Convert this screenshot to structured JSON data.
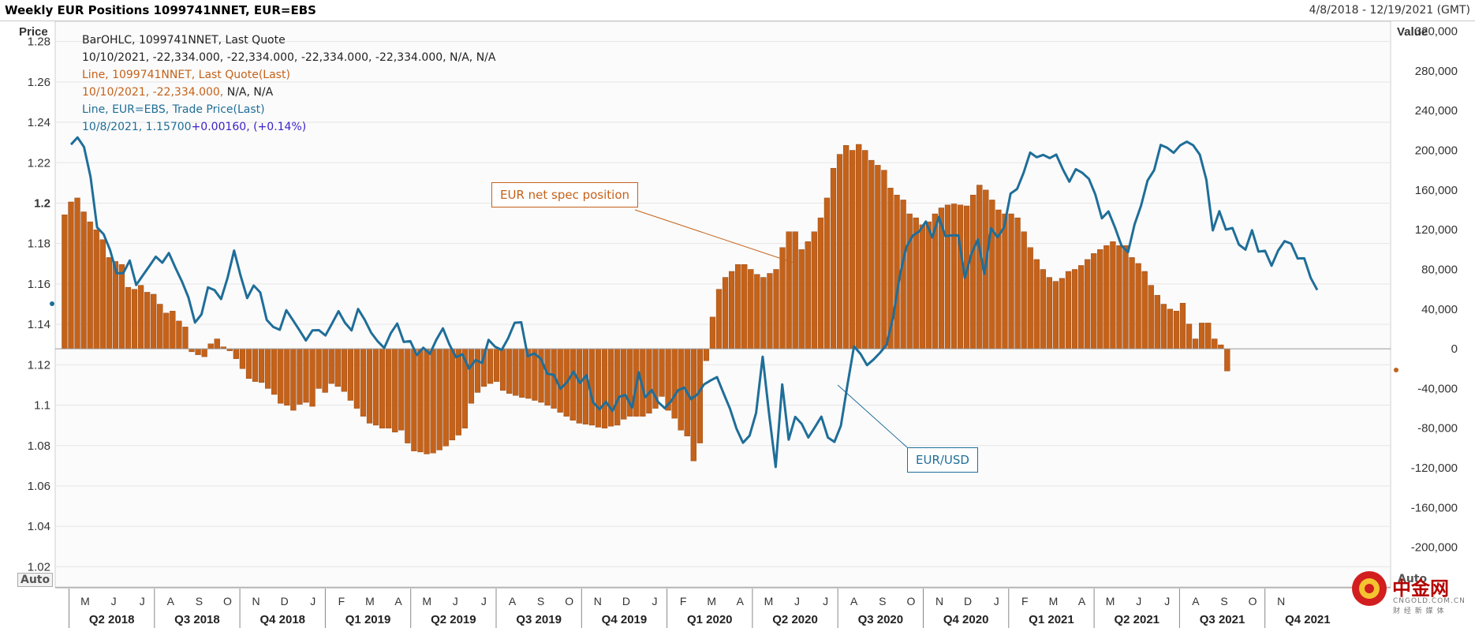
{
  "header": {
    "title": "Weekly EUR Positions 1099741NNET, EUR=EBS",
    "date_range": "4/8/2018 - 12/19/2021 (GMT)"
  },
  "legend": {
    "line1": "BarOHLC, 1099741NNET, Last Quote",
    "line2": "10/10/2021, -22,334.000, -22,334.000, -22,334.000, -22,334.000, N/A, N/A",
    "line3": "Line, 1099741NNET, Last Quote(Last)",
    "line4a": "10/10/2021, -22,334.000,",
    "line4b": " N/A, N/A",
    "line5": "Line, EUR=EBS, Trade Price(Last)",
    "line6a": "10/8/2021, 1.15700",
    "line6b": "+0.00160, (+0.14%)"
  },
  "callouts": {
    "position": "EUR net spec position",
    "eurusd": "EUR/USD"
  },
  "controls": {
    "auto_left": "Auto",
    "auto_right": "Auto"
  },
  "watermark": {
    "text": "中金网",
    "sub": "CNGOLD.COM.CN",
    "sub2": "财 经 新 媒 体"
  },
  "colors": {
    "bars": "#c4621a",
    "bars_edge": "#8a3e0c",
    "line": "#1f6e99",
    "legend_orange": "#c4621a",
    "legend_blue": "#1f6e99",
    "legend_purple": "#3b22c8",
    "grid": "#e6e6e6"
  },
  "chart_data": {
    "type": "bar+line",
    "title": "Weekly EUR Positions 1099741NNET, EUR=EBS",
    "left_axis": {
      "label": "Price",
      "ylim": [
        1.01,
        1.29
      ],
      "ticks": [
        1.02,
        1.04,
        1.06,
        1.08,
        1.1,
        1.12,
        1.14,
        1.16,
        1.18,
        1.2,
        1.22,
        1.24,
        1.26,
        1.28
      ],
      "tick_labels": [
        "1.02",
        "1.04",
        "1.06",
        "1.08",
        "1.1",
        "1.12",
        "1.14",
        "1.16",
        "1.18",
        "1.2",
        "1.22",
        "1.24",
        "1.26",
        "1.28"
      ]
    },
    "right_axis": {
      "label": "Value",
      "ylim": [
        -240000,
        330000
      ],
      "ticks": [
        -200000,
        -160000,
        -120000,
        -80000,
        -40000,
        0,
        40000,
        80000,
        120000,
        160000,
        200000,
        240000,
        280000,
        320000
      ],
      "tick_labels": [
        "-200,000",
        "-160,000",
        "-120,000",
        "-80,000",
        "-40,000",
        "0",
        "40,000",
        "80,000",
        "120,000",
        "160,000",
        "200,000",
        "240,000",
        "280,000",
        "320,000"
      ]
    },
    "x_axis": {
      "month_labels": [
        "M",
        "J",
        "J",
        "A",
        "S",
        "O",
        "N",
        "D",
        "J",
        "F",
        "M",
        "A",
        "M",
        "J",
        "J",
        "A",
        "S",
        "O",
        "N",
        "D",
        "J",
        "F",
        "M",
        "A",
        "M",
        "J",
        "J",
        "A",
        "S",
        "O",
        "N",
        "D",
        "J",
        "F",
        "M",
        "A",
        "M",
        "J",
        "J",
        "A",
        "S",
        "O",
        "N"
      ],
      "quarter_labels": [
        "Q2 2018",
        "Q3 2018",
        "Q4 2018",
        "Q1 2019",
        "Q2 2019",
        "Q3 2019",
        "Q4 2019",
        "Q1 2020",
        "Q2 2020",
        "Q3 2020",
        "Q4 2020",
        "Q1 2021",
        "Q2 2021",
        "Q3 2021",
        "Q4 2021"
      ],
      "first_month_index": 1,
      "month_count": 45
    },
    "grid": true,
    "series": [
      {
        "name": "1099741NNET, Last Quote",
        "kind": "bar",
        "axis": "right",
        "values": [
          135000,
          148000,
          152000,
          138000,
          128000,
          120000,
          110000,
          92000,
          88000,
          85000,
          62000,
          60000,
          64000,
          57000,
          55000,
          45000,
          36000,
          38000,
          28000,
          22000,
          -3000,
          -6000,
          -8000,
          5000,
          10000,
          2000,
          -2000,
          -10000,
          -20000,
          -30000,
          -33000,
          -34000,
          -40000,
          -46000,
          -55000,
          -57000,
          -62000,
          -56000,
          -54000,
          -58000,
          -40000,
          -44000,
          -35000,
          -38000,
          -43000,
          -52000,
          -60000,
          -68000,
          -75000,
          -77000,
          -80000,
          -80000,
          -84000,
          -82000,
          -95000,
          -103000,
          -104000,
          -106000,
          -105000,
          -102000,
          -98000,
          -92000,
          -87000,
          -80000,
          -55000,
          -44000,
          -38000,
          -35000,
          -33000,
          -42000,
          -45000,
          -47000,
          -49000,
          -50000,
          -52000,
          -54000,
          -57000,
          -60000,
          -64000,
          -68000,
          -72000,
          -75000,
          -76000,
          -77000,
          -79000,
          -80000,
          -78000,
          -77000,
          -71000,
          -68000,
          -68000,
          -68000,
          -65000,
          -60000,
          -48000,
          -62000,
          -70000,
          -82000,
          -88000,
          -113000,
          -95000,
          -12000,
          32000,
          60000,
          72000,
          78000,
          85000,
          85000,
          80000,
          75000,
          72000,
          76000,
          80000,
          102000,
          118000,
          118000,
          100000,
          108000,
          118000,
          132000,
          152000,
          182000,
          196000,
          205000,
          200000,
          206000,
          200000,
          190000,
          185000,
          180000,
          162000,
          155000,
          150000,
          136000,
          132000,
          125000,
          128000,
          136000,
          142000,
          145000,
          146000,
          145000,
          144000,
          155000,
          165000,
          160000,
          150000,
          140000,
          136000,
          136000,
          132000,
          118000,
          102000,
          90000,
          80000,
          72000,
          68000,
          71000,
          78000,
          80000,
          84000,
          90000,
          96000,
          100000,
          104000,
          108000,
          104000,
          104000,
          92000,
          86000,
          78000,
          64000,
          54000,
          45000,
          40000,
          38000,
          46000,
          25000,
          10000,
          26000,
          26000,
          10000,
          4000,
          -22334
        ]
      },
      {
        "name": "EUR=EBS, Trade Price(Last)",
        "kind": "line",
        "axis": "left",
        "values": [
          1.229,
          1.2325,
          1.2278,
          1.213,
          1.188,
          1.1846,
          1.1767,
          1.1653,
          1.1653,
          1.1716,
          1.1595,
          1.1642,
          1.1688,
          1.1735,
          1.1705,
          1.1753,
          1.168,
          1.1613,
          1.1533,
          1.1409,
          1.1449,
          1.1583,
          1.1569,
          1.1525,
          1.163,
          1.1765,
          1.164,
          1.153,
          1.1592,
          1.1558,
          1.1422,
          1.1387,
          1.1373,
          1.147,
          1.1421,
          1.1372,
          1.132,
          1.137,
          1.1371,
          1.1345,
          1.1404,
          1.1465,
          1.1408,
          1.137,
          1.1476,
          1.1423,
          1.1359,
          1.1316,
          1.1283,
          1.1355,
          1.1404,
          1.1313,
          1.1317,
          1.1248,
          1.1284,
          1.1254,
          1.1324,
          1.138,
          1.13,
          1.1237,
          1.1252,
          1.118,
          1.1223,
          1.1209,
          1.1323,
          1.1289,
          1.1273,
          1.1331,
          1.1408,
          1.141,
          1.1242,
          1.1256,
          1.123,
          1.1155,
          1.115,
          1.1081,
          1.1113,
          1.1166,
          1.111,
          1.1148,
          1.1015,
          1.0979,
          1.1017,
          1.0971,
          1.1041,
          1.105,
          1.0987,
          1.1163,
          1.1039,
          1.1075,
          1.1015,
          1.0985,
          1.1021,
          1.1073,
          1.1087,
          1.103,
          1.1053,
          1.1102,
          1.1122,
          1.1139,
          1.106,
          1.0982,
          1.0883,
          1.0814,
          1.0849,
          1.0962,
          1.124,
          1.0955,
          1.0694,
          1.1103,
          1.0829,
          1.0942,
          1.0907,
          1.084,
          1.089,
          1.0943,
          1.084,
          1.0818,
          1.0899,
          1.11,
          1.1291,
          1.1254,
          1.1198,
          1.1226,
          1.126,
          1.1299,
          1.1436,
          1.1638,
          1.178,
          1.1839,
          1.186,
          1.1909,
          1.183,
          1.1932,
          1.1837,
          1.1841,
          1.184,
          1.163,
          1.175,
          1.182,
          1.165,
          1.1876,
          1.1831,
          1.1879,
          1.2047,
          1.207,
          1.215,
          1.225,
          1.2227,
          1.2239,
          1.2223,
          1.224,
          1.2168,
          1.2106,
          1.2168,
          1.215,
          1.212,
          1.2042,
          1.1925,
          1.1959,
          1.1879,
          1.179,
          1.1757,
          1.1895,
          1.1987,
          1.2112,
          1.2163,
          1.2288,
          1.2274,
          1.2249,
          1.2286,
          1.2304,
          1.2286,
          1.224,
          1.2116,
          1.1865,
          1.196,
          1.1869,
          1.1877,
          1.1795,
          1.177,
          1.1866,
          1.176,
          1.1764,
          1.169,
          1.1765,
          1.1812,
          1.1799,
          1.1726,
          1.1727,
          1.163,
          1.157
        ],
        "last": {
          "date": "10/8/2021",
          "value": 1.157,
          "change": "+0.00160",
          "pct": "+0.14%"
        }
      }
    ],
    "annotations": [
      "EUR net spec position",
      "EUR/USD"
    ]
  }
}
